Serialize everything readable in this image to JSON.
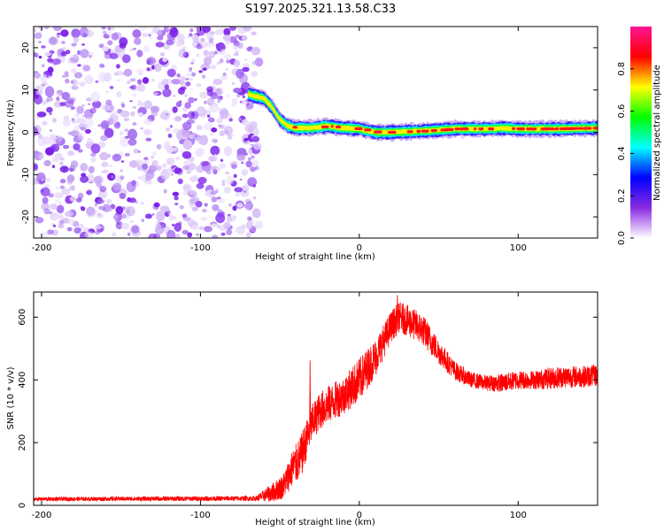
{
  "title": "S197.2025.321.13.58.C33",
  "chart_data": [
    {
      "type": "heatmap",
      "name": "spectrogram",
      "xlabel": "Height of straight line (km)",
      "ylabel": "Frequency (Hz)",
      "xlim": [
        -205,
        150
      ],
      "ylim": [
        -25,
        25
      ],
      "xticks": [
        -200,
        -100,
        0,
        100
      ],
      "yticks": [
        -20,
        -10,
        0,
        10,
        20
      ],
      "noise_region_x": [
        -205,
        -63
      ],
      "signal_track": {
        "x": [
          -70,
          -60,
          -55,
          -50,
          -45,
          -40,
          -30,
          -20,
          -10,
          0,
          10,
          20,
          40,
          60,
          80,
          90,
          100,
          120,
          150
        ],
        "freq_hz": [
          9,
          8,
          6,
          3,
          1.5,
          1,
          1,
          1.5,
          1,
          0.8,
          0,
          0,
          0.3,
          0.8,
          0.8,
          1,
          0.8,
          0.8,
          1
        ]
      },
      "colorbar": {
        "label": "Normalized spectral amplitude",
        "range": [
          0,
          1
        ],
        "ticks": [
          "0.0",
          "0.2",
          "0.4",
          "0.6",
          "0.8"
        ],
        "colors": [
          "#ffffff",
          "#8a2be2",
          "#0000ff",
          "#00ffff",
          "#00ff00",
          "#ffff00",
          "#ff0000",
          "#ff1493"
        ]
      }
    },
    {
      "type": "line",
      "name": "snr",
      "xlabel": "Height of straight line (km)",
      "ylabel": "SNR (10 * v/v)",
      "xlim": [
        -205,
        150
      ],
      "ylim": [
        0,
        680
      ],
      "xticks": [
        -200,
        -100,
        0,
        100
      ],
      "yticks": [
        0,
        200,
        400,
        600
      ],
      "color": "#ff0000",
      "envelope": {
        "x": [
          -205,
          -65,
          -55,
          -48,
          -42,
          -37,
          -30,
          -25,
          -20,
          -10,
          0,
          10,
          20,
          25,
          30,
          40,
          50,
          60,
          70,
          80,
          90,
          100,
          110,
          120,
          130,
          140,
          150
        ],
        "mean": [
          20,
          22,
          40,
          60,
          120,
          150,
          260,
          300,
          320,
          350,
          400,
          470,
          570,
          600,
          590,
          560,
          490,
          430,
          400,
          390,
          390,
          400,
          400,
          405,
          410,
          410,
          415
        ],
        "spread": [
          6,
          8,
          30,
          40,
          60,
          70,
          60,
          60,
          60,
          60,
          70,
          60,
          50,
          50,
          50,
          50,
          40,
          30,
          25,
          25,
          30,
          30,
          30,
          35,
          35,
          35,
          35
        ]
      },
      "spikes": [
        {
          "x": -31,
          "y": 462
        },
        {
          "x": 24,
          "y": 670
        }
      ]
    }
  ]
}
